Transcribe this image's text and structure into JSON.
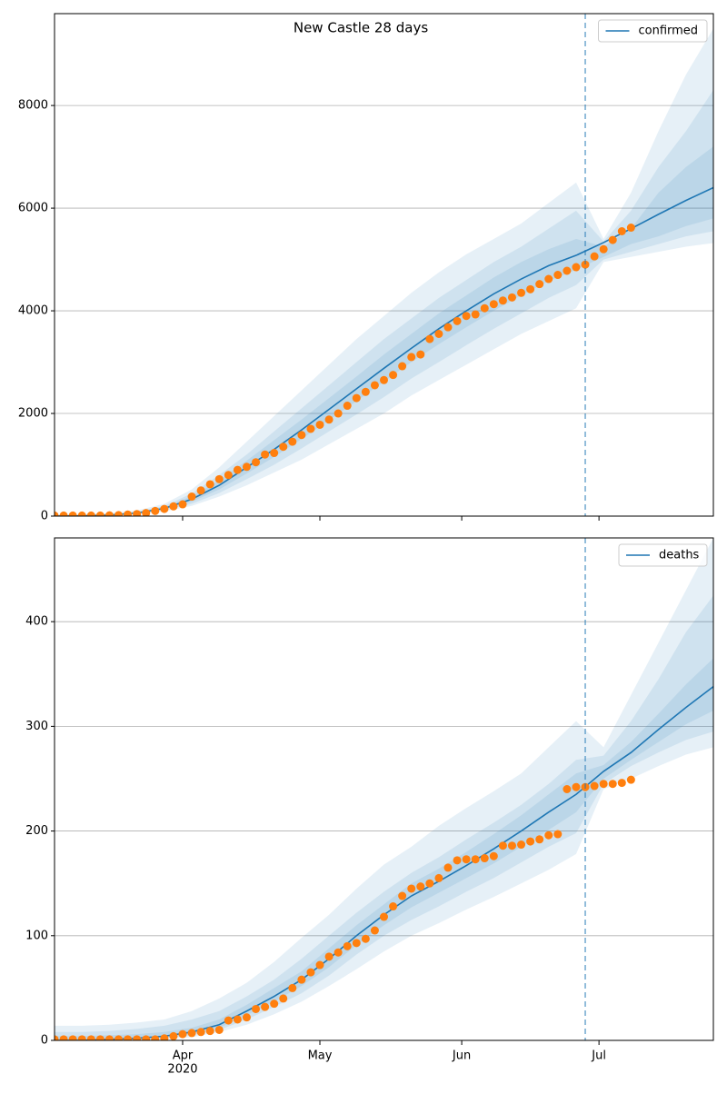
{
  "chart_data": [
    {
      "type": "line",
      "title": "New Castle 28 days",
      "xlim": [
        64,
        208
      ],
      "xticks": [
        92,
        122,
        153,
        183
      ],
      "ylim": [
        0,
        9790
      ],
      "yticks": [
        0,
        2000,
        4000,
        6000,
        8000
      ],
      "grid": "y",
      "legend": "upper right",
      "vline": 180,
      "series": [
        {
          "name": "confirmed",
          "color": "#1f77b4",
          "x": [
            64,
            70,
            76,
            82,
            88,
            94,
            100,
            106,
            112,
            118,
            124,
            130,
            136,
            142,
            148,
            154,
            160,
            166,
            172,
            178,
            184,
            190,
            196,
            202,
            208
          ],
          "values": [
            0,
            5,
            20,
            60,
            150,
            330,
            600,
            950,
            1300,
            1680,
            2080,
            2480,
            2880,
            3270,
            3650,
            4000,
            4330,
            4620,
            4880,
            5080,
            5330,
            5600,
            5880,
            6150,
            6400
          ],
          "bands": [
            {
              "lower": [
                0,
                0,
                5,
                30,
                90,
                200,
                380,
                600,
                850,
                1100,
                1400,
                1700,
                2000,
                2350,
                2650,
                2950,
                3250,
                3550,
                3800,
                4050,
                4950,
                5050,
                5150,
                5250,
                5320
              ],
              "upper": [
                30,
                40,
                60,
                110,
                240,
                520,
                950,
                1450,
                1950,
                2450,
                2950,
                3450,
                3900,
                4350,
                4750,
                5100,
                5400,
                5700,
                6100,
                6500,
                5400,
                6300,
                7500,
                8600,
                9500
              ]
            },
            {
              "lower": [
                0,
                2,
                10,
                40,
                110,
                240,
                450,
                720,
                1000,
                1320,
                1650,
                1980,
                2320,
                2680,
                3000,
                3330,
                3650,
                3950,
                4250,
                4500,
                5000,
                5150,
                5300,
                5450,
                5550
              ],
              "upper": [
                20,
                25,
                40,
                85,
                200,
                440,
                800,
                1200,
                1650,
                2100,
                2550,
                3000,
                3450,
                3850,
                4250,
                4600,
                4950,
                5250,
                5600,
                5950,
                5350,
                5950,
                6800,
                7500,
                8300
              ]
            },
            {
              "lower": [
                0,
                3,
                14,
                50,
                130,
                280,
                520,
                830,
                1150,
                1500,
                1870,
                2240,
                2620,
                3000,
                3350,
                3680,
                4000,
                4300,
                4580,
                4800,
                5050,
                5300,
                5450,
                5650,
                5800
              ],
              "upper": [
                10,
                12,
                30,
                72,
                175,
                390,
                700,
                1080,
                1480,
                1880,
                2300,
                2720,
                3150,
                3550,
                3950,
                4300,
                4650,
                4950,
                5200,
                5400,
                5250,
                5600,
                6300,
                6800,
                7200
              ]
            }
          ]
        }
      ],
      "observed": {
        "color": "#ff7f0e",
        "x": [
          64,
          66,
          68,
          70,
          72,
          74,
          76,
          78,
          80,
          82,
          84,
          86,
          88,
          90,
          92,
          94,
          96,
          98,
          100,
          102,
          104,
          106,
          108,
          110,
          112,
          114,
          116,
          118,
          120,
          122,
          124,
          126,
          128,
          130,
          132,
          134,
          136,
          138,
          140,
          142,
          144,
          146,
          148,
          150,
          152,
          154,
          156,
          158,
          160,
          162,
          164,
          166,
          168,
          170,
          172,
          174,
          176,
          178,
          180,
          182,
          184,
          186,
          188,
          190
        ],
        "values": [
          10,
          10,
          10,
          10,
          10,
          10,
          15,
          20,
          30,
          40,
          60,
          100,
          140,
          190,
          230,
          380,
          500,
          620,
          720,
          800,
          900,
          960,
          1050,
          1200,
          1230,
          1350,
          1450,
          1580,
          1700,
          1780,
          1880,
          2000,
          2150,
          2300,
          2420,
          2550,
          2650,
          2750,
          2920,
          3100,
          3150,
          3450,
          3550,
          3680,
          3800,
          3900,
          3930,
          4050,
          4130,
          4200,
          4260,
          4350,
          4420,
          4520,
          4620,
          4700,
          4780,
          4850,
          4900,
          5060,
          5200,
          5380,
          5550,
          5620
        ]
      }
    },
    {
      "type": "line",
      "xlim": [
        64,
        208
      ],
      "xticks": [
        {
          "value": 92,
          "label": "Apr"
        },
        {
          "value": 122,
          "label": "May"
        },
        {
          "value": 153,
          "label": "Jun"
        },
        {
          "value": 183,
          "label": "Jul"
        }
      ],
      "xtick_year": "2020",
      "ylim": [
        0,
        480
      ],
      "yticks": [
        0,
        100,
        200,
        300,
        400
      ],
      "grid": "y",
      "legend": "upper right",
      "vline": 180,
      "series": [
        {
          "name": "deaths",
          "color": "#1f77b4",
          "x": [
            64,
            70,
            76,
            82,
            88,
            94,
            100,
            106,
            112,
            118,
            124,
            130,
            136,
            142,
            148,
            154,
            160,
            166,
            172,
            178,
            184,
            190,
            196,
            202,
            208
          ],
          "values": [
            0,
            0,
            1,
            2,
            4,
            8,
            15,
            28,
            42,
            58,
            78,
            100,
            120,
            138,
            152,
            167,
            183,
            200,
            218,
            235,
            257,
            275,
            297,
            318,
            338
          ],
          "bands": [
            {
              "lower": [
                0,
                0,
                0,
                0,
                1,
                3,
                8,
                15,
                25,
                37,
                52,
                68,
                85,
                100,
                112,
                125,
                137,
                150,
                163,
                178,
                240,
                250,
                262,
                273,
                280
              ],
              "upper": [
                14,
                14,
                15,
                17,
                20,
                28,
                40,
                55,
                75,
                98,
                120,
                145,
                168,
                185,
                205,
                222,
                238,
                255,
                280,
                305,
                280,
                330,
                380,
                430,
                480
              ]
            },
            {
              "lower": [
                0,
                0,
                0,
                0,
                2,
                5,
                10,
                20,
                32,
                45,
                62,
                82,
                100,
                115,
                128,
                142,
                155,
                170,
                185,
                198,
                245,
                262,
                275,
                287,
                295
              ],
              "upper": [
                8,
                8,
                9,
                11,
                14,
                20,
                28,
                42,
                58,
                78,
                100,
                122,
                142,
                160,
                175,
                192,
                208,
                225,
                245,
                268,
                272,
                305,
                345,
                390,
                425
              ]
            },
            {
              "lower": [
                0,
                0,
                0,
                1,
                3,
                6,
                12,
                24,
                37,
                52,
                70,
                91,
                110,
                127,
                141,
                155,
                169,
                185,
                201,
                218,
                250,
                268,
                285,
                302,
                315
              ],
              "upper": [
                4,
                4,
                5,
                6,
                8,
                12,
                20,
                34,
                50,
                66,
                88,
                110,
                130,
                150,
                164,
                180,
                197,
                215,
                235,
                255,
                263,
                285,
                312,
                340,
                365
              ]
            }
          ]
        }
      ],
      "observed": {
        "color": "#ff7f0e",
        "x": [
          64,
          66,
          68,
          70,
          72,
          74,
          76,
          78,
          80,
          82,
          84,
          86,
          88,
          90,
          92,
          94,
          96,
          98,
          100,
          102,
          104,
          106,
          108,
          110,
          112,
          114,
          116,
          118,
          120,
          122,
          124,
          126,
          128,
          130,
          132,
          134,
          136,
          138,
          140,
          142,
          144,
          146,
          148,
          150,
          152,
          154,
          156,
          158,
          160,
          162,
          164,
          166,
          168,
          170,
          172,
          174,
          176,
          178,
          180,
          182,
          184,
          186,
          188,
          190
        ],
        "values": [
          1,
          1,
          1,
          1,
          1,
          1,
          1,
          1,
          1,
          1,
          1,
          1,
          2,
          4,
          6,
          7,
          8,
          9,
          10,
          19,
          20,
          22,
          30,
          32,
          35,
          40,
          50,
          58,
          65,
          72,
          80,
          84,
          90,
          93,
          97,
          105,
          118,
          128,
          138,
          145,
          147,
          150,
          155,
          165,
          172,
          173,
          173,
          174,
          176,
          186,
          186,
          187,
          190,
          192,
          196,
          197,
          240,
          242,
          242,
          243,
          245,
          245,
          246,
          249
        ]
      }
    }
  ]
}
